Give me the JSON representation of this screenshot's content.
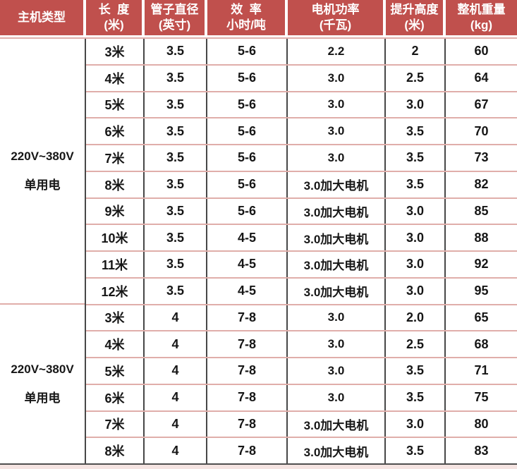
{
  "chart_data": {
    "type": "table",
    "columns": [
      {
        "key": "machine-type",
        "lines": [
          "主机类型"
        ]
      },
      {
        "key": "length",
        "lines": [
          "长  度",
          "(米)"
        ]
      },
      {
        "key": "pipe-diameter",
        "lines": [
          "管子直径",
          "(英寸)"
        ]
      },
      {
        "key": "efficiency",
        "lines": [
          "效  率",
          "小时/吨"
        ]
      },
      {
        "key": "motor-power",
        "lines": [
          "电机功率",
          "(千瓦)"
        ]
      },
      {
        "key": "lift-height",
        "lines": [
          "提升高度",
          "(米)"
        ]
      },
      {
        "key": "weight",
        "lines": [
          "整机重量",
          "(kg)"
        ]
      }
    ],
    "groups": [
      {
        "machine_type": [
          "220V~380V",
          "单用电"
        ],
        "rows": [
          [
            "3米",
            "3.5",
            "5-6",
            "2.2",
            "2",
            "60"
          ],
          [
            "4米",
            "3.5",
            "5-6",
            "3.0",
            "2.5",
            "64"
          ],
          [
            "5米",
            "3.5",
            "5-6",
            "3.0",
            "3.0",
            "67"
          ],
          [
            "6米",
            "3.5",
            "5-6",
            "3.0",
            "3.5",
            "70"
          ],
          [
            "7米",
            "3.5",
            "5-6",
            "3.0",
            "3.5",
            "73"
          ],
          [
            "8米",
            "3.5",
            "5-6",
            "3.0加大电机",
            "3.5",
            "82"
          ],
          [
            "9米",
            "3.5",
            "5-6",
            "3.0加大电机",
            "3.0",
            "85"
          ],
          [
            "10米",
            "3.5",
            "4-5",
            "3.0加大电机",
            "3.0",
            "88"
          ],
          [
            "11米",
            "3.5",
            "4-5",
            "3.0加大电机",
            "3.0",
            "92"
          ],
          [
            "12米",
            "3.5",
            "4-5",
            "3.0加大电机",
            "3.0",
            "95"
          ]
        ]
      },
      {
        "machine_type": [
          "220V~380V",
          "单用电"
        ],
        "rows": [
          [
            "3米",
            "4",
            "7-8",
            "3.0",
            "2.0",
            "65"
          ],
          [
            "4米",
            "4",
            "7-8",
            "3.0",
            "2.5",
            "68"
          ],
          [
            "5米",
            "4",
            "7-8",
            "3.0",
            "3.5",
            "71"
          ],
          [
            "6米",
            "4",
            "7-8",
            "3.0",
            "3.5",
            "75"
          ],
          [
            "7米",
            "4",
            "7-8",
            "3.0加大电机",
            "3.0",
            "80"
          ],
          [
            "8米",
            "4",
            "7-8",
            "3.0加大电机",
            "3.5",
            "83"
          ]
        ]
      }
    ]
  },
  "colors": {
    "header_bg": "#c0504d",
    "header_text": "#ffffff",
    "body_text": "#161616",
    "row_divider": "#e0aeaa",
    "column_divider": "#474747",
    "bottom_strip": "#f5e4e2"
  }
}
